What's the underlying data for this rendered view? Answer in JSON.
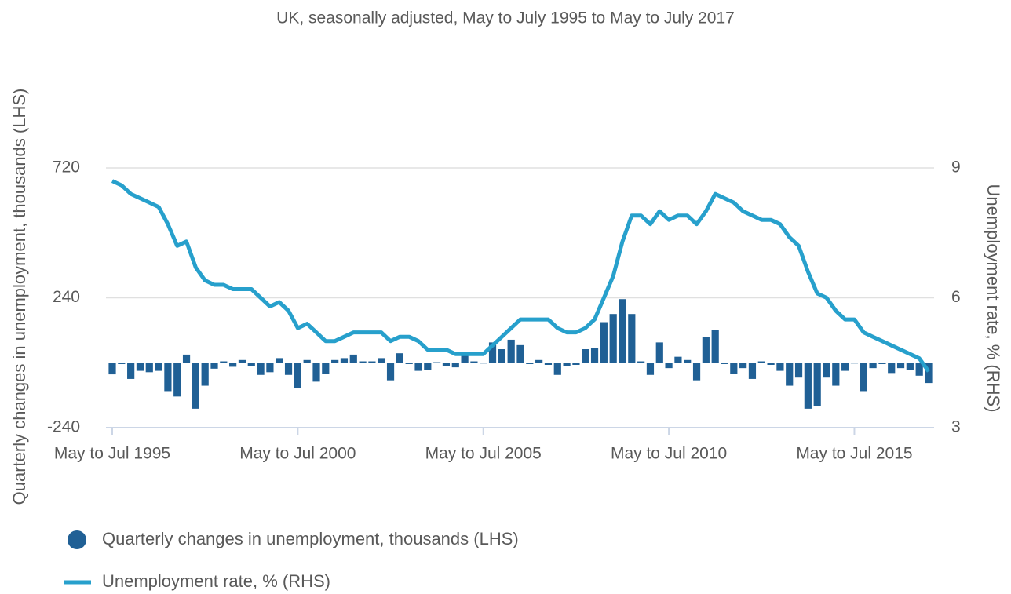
{
  "chart_data": {
    "type": "combo",
    "title": "UK, seasonally adjusted, May to July 1995 to May to July 2017",
    "y_label": "Quarterly changes in unemployment, thousands (LHS)",
    "y2_label": "Unemployment rate, % (RHS)",
    "categories": [
      "May to Jul 1995",
      null,
      null,
      null,
      null,
      null,
      null,
      null,
      null,
      null,
      null,
      null,
      null,
      null,
      null,
      null,
      null,
      null,
      null,
      null,
      "May to Jul 2000",
      null,
      null,
      null,
      null,
      null,
      null,
      null,
      null,
      null,
      null,
      null,
      null,
      null,
      null,
      null,
      null,
      null,
      null,
      null,
      "May to Jul 2005",
      null,
      null,
      null,
      null,
      null,
      null,
      null,
      null,
      null,
      null,
      null,
      null,
      null,
      null,
      null,
      null,
      null,
      null,
      null,
      "May to Jul 2010",
      null,
      null,
      null,
      null,
      null,
      null,
      null,
      null,
      null,
      null,
      null,
      null,
      null,
      null,
      null,
      null,
      null,
      null,
      null,
      "May to Jul 2015",
      null,
      null,
      null,
      null,
      null,
      null,
      null,
      null
    ],
    "series": [
      {
        "name": "Quarterly changes in unemployment, thousands (LHS)",
        "type": "bar",
        "color": "#206095",
        "values": [
          -43,
          -5,
          -60,
          -30,
          -35,
          -30,
          -105,
          -125,
          30,
          -170,
          -85,
          -22,
          5,
          -15,
          10,
          -12,
          -45,
          -35,
          17,
          -45,
          -95,
          10,
          -70,
          -40,
          10,
          17,
          30,
          5,
          5,
          17,
          -65,
          35,
          -5,
          -30,
          -28,
          2,
          -12,
          -17,
          32,
          5,
          0,
          75,
          50,
          85,
          65,
          -5,
          10,
          -8,
          -45,
          -12,
          -8,
          50,
          55,
          150,
          180,
          235,
          180,
          5,
          -45,
          75,
          -20,
          22,
          10,
          -65,
          95,
          120,
          -5,
          -40,
          -20,
          -60,
          5,
          -8,
          -30,
          -85,
          -55,
          -170,
          -160,
          -55,
          -85,
          -30,
          0,
          -105,
          -20,
          -5,
          -38,
          -20,
          -28,
          -48,
          -75
        ]
      },
      {
        "name": "Unemployment rate, % (RHS)",
        "type": "line",
        "axis": "y2",
        "color": "#27a0cc",
        "values": [
          8.7,
          8.6,
          8.4,
          8.3,
          8.2,
          8.1,
          7.7,
          7.2,
          7.3,
          6.7,
          6.4,
          6.3,
          6.3,
          6.2,
          6.2,
          6.2,
          6.0,
          5.8,
          5.9,
          5.7,
          5.3,
          5.4,
          5.2,
          5.0,
          5.0,
          5.1,
          5.2,
          5.2,
          5.2,
          5.2,
          5.0,
          5.1,
          5.1,
          5.0,
          4.8,
          4.8,
          4.8,
          4.7,
          4.7,
          4.7,
          4.7,
          4.9,
          5.1,
          5.3,
          5.5,
          5.5,
          5.5,
          5.5,
          5.3,
          5.2,
          5.2,
          5.3,
          5.5,
          6.0,
          6.5,
          7.3,
          7.9,
          7.9,
          7.7,
          8.0,
          7.8,
          7.9,
          7.9,
          7.7,
          8.0,
          8.4,
          8.3,
          8.2,
          8.0,
          7.9,
          7.8,
          7.8,
          7.7,
          7.4,
          7.2,
          6.6,
          6.1,
          6.0,
          5.7,
          5.5,
          5.5,
          5.2,
          5.1,
          5.0,
          4.9,
          4.8,
          4.7,
          4.6,
          4.3
        ]
      }
    ],
    "ylim": [
      -240,
      720
    ],
    "yticks": [
      -240,
      240,
      720
    ],
    "y2lim": [
      3,
      9
    ],
    "y2ticks": [
      3,
      6,
      9
    ],
    "grid": true
  }
}
